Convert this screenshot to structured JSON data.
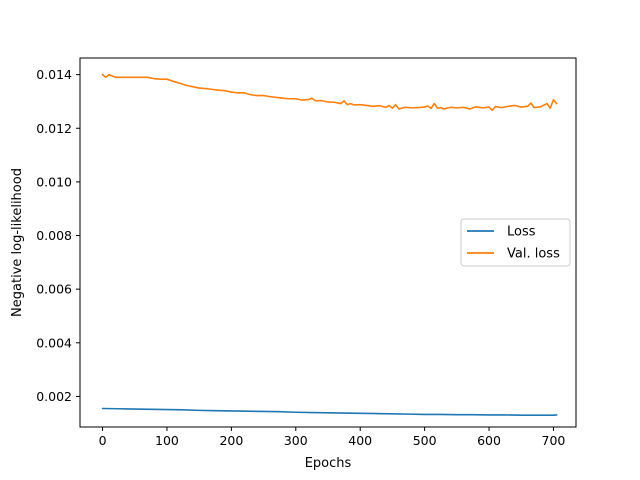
{
  "chart_data": {
    "type": "line",
    "title": "",
    "xlabel": "Epochs",
    "ylabel": "Negative log-likelihood",
    "xlim": [
      -35,
      735
    ],
    "ylim": [
      0.00086,
      0.01462
    ],
    "xticks": [
      0,
      100,
      200,
      300,
      400,
      500,
      600,
      700
    ],
    "yticks": [
      0.002,
      0.004,
      0.006,
      0.008,
      0.01,
      0.012,
      0.014
    ],
    "ytick_labels": [
      "0.002",
      "0.004",
      "0.006",
      "0.008",
      "0.010",
      "0.012",
      "0.014"
    ],
    "grid": false,
    "legend_position": "center-right",
    "series": [
      {
        "name": "Loss",
        "color": "#1f77b4",
        "x": [
          0,
          25,
          50,
          75,
          100,
          125,
          150,
          175,
          200,
          225,
          250,
          275,
          300,
          325,
          350,
          375,
          400,
          425,
          450,
          475,
          500,
          525,
          550,
          575,
          600,
          625,
          650,
          675,
          700,
          705
        ],
        "values": [
          0.00155,
          0.00154,
          0.00153,
          0.00152,
          0.00151,
          0.0015,
          0.00148,
          0.00147,
          0.00146,
          0.00145,
          0.00144,
          0.00143,
          0.00141,
          0.0014,
          0.00139,
          0.00138,
          0.00137,
          0.00136,
          0.00135,
          0.00134,
          0.00133,
          0.00133,
          0.00132,
          0.00132,
          0.00131,
          0.00131,
          0.0013,
          0.0013,
          0.0013,
          0.00131
        ]
      },
      {
        "name": "Val. loss",
        "color": "#ff7f0e",
        "x": [
          0,
          5,
          10,
          15,
          20,
          30,
          40,
          50,
          60,
          70,
          80,
          90,
          100,
          110,
          120,
          130,
          140,
          150,
          160,
          170,
          180,
          190,
          200,
          210,
          220,
          230,
          240,
          250,
          260,
          270,
          280,
          290,
          300,
          310,
          320,
          325,
          330,
          340,
          350,
          360,
          370,
          375,
          380,
          385,
          390,
          400,
          410,
          420,
          430,
          440,
          445,
          450,
          455,
          460,
          470,
          480,
          490,
          500,
          505,
          510,
          515,
          520,
          525,
          530,
          540,
          550,
          560,
          570,
          580,
          590,
          600,
          605,
          610,
          620,
          630,
          640,
          650,
          660,
          665,
          670,
          680,
          690,
          695,
          700,
          705
        ],
        "values": [
          0.014,
          0.0139,
          0.014,
          0.01395,
          0.0139,
          0.0139,
          0.0139,
          0.0139,
          0.0139,
          0.0139,
          0.01385,
          0.01383,
          0.01383,
          0.01375,
          0.01368,
          0.0136,
          0.01355,
          0.0135,
          0.01348,
          0.01345,
          0.01342,
          0.0134,
          0.01335,
          0.01332,
          0.01332,
          0.01325,
          0.01322,
          0.01322,
          0.01318,
          0.01315,
          0.01312,
          0.0131,
          0.0131,
          0.01305,
          0.01307,
          0.01312,
          0.01303,
          0.01303,
          0.01298,
          0.01297,
          0.01292,
          0.01302,
          0.01288,
          0.01292,
          0.01287,
          0.01288,
          0.01285,
          0.01282,
          0.01284,
          0.01278,
          0.01285,
          0.01275,
          0.01288,
          0.01272,
          0.01278,
          0.01276,
          0.01277,
          0.01279,
          0.01283,
          0.01274,
          0.01292,
          0.01275,
          0.01277,
          0.01272,
          0.01278,
          0.01276,
          0.01278,
          0.01272,
          0.0128,
          0.01276,
          0.01279,
          0.01267,
          0.01281,
          0.01277,
          0.01282,
          0.01285,
          0.01279,
          0.01282,
          0.01294,
          0.01277,
          0.0128,
          0.01292,
          0.01275,
          0.01306,
          0.01292
        ]
      }
    ]
  }
}
